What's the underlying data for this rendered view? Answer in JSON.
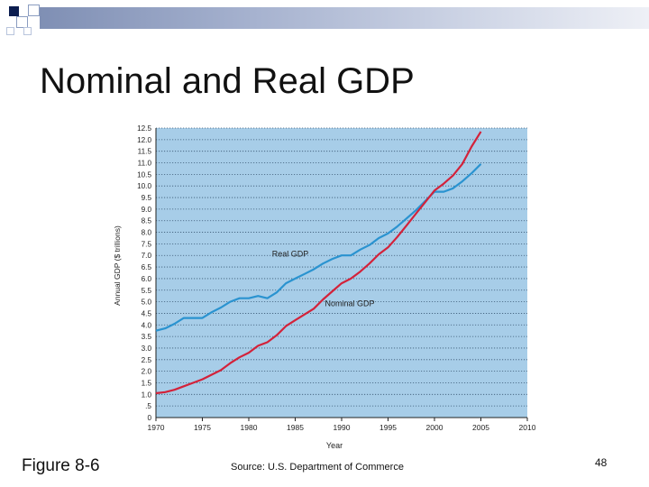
{
  "slide": {
    "title": "Nominal and Real GDP",
    "figure_label": "Figure 8-6",
    "source": "Source: U.S. Department of Commerce",
    "page_number": "48"
  },
  "colors": {
    "plot_background": "#a7cde8",
    "real_gdp": "#2a93d0",
    "nominal_gdp": "#d3223a",
    "decor_square": "#0b1d4f"
  },
  "chart_data": {
    "type": "line",
    "xlabel": "Year",
    "ylabel": "Annual GDP ($ trillions)",
    "xlim": [
      1970,
      2010
    ],
    "ylim": [
      0,
      12.5
    ],
    "x_ticks": [
      "1970",
      "1975",
      "1980",
      "1985",
      "1990",
      "1995",
      "2000",
      "2005",
      "2010"
    ],
    "y_ticks": [
      "0",
      ".5",
      "1.0",
      "1.5",
      "2.0",
      "2.5",
      "3.0",
      "3.5",
      "4.0",
      "4.5",
      "5.0",
      "5.5",
      "6.0",
      "6.5",
      "7.0",
      "7.5",
      "8.0",
      "8.5",
      "9.0",
      "9.5",
      "10.0",
      "10.5",
      "11.0",
      "11.5",
      "12.0",
      "12.5"
    ],
    "grid": true,
    "series": [
      {
        "name": "Real GDP",
        "x": [
          1970,
          1971,
          1972,
          1973,
          1974,
          1975,
          1976,
          1977,
          1978,
          1979,
          1980,
          1981,
          1982,
          1983,
          1984,
          1985,
          1986,
          1987,
          1988,
          1989,
          1990,
          1991,
          1992,
          1993,
          1994,
          1995,
          1996,
          1997,
          1998,
          1999,
          2000,
          2001,
          2002,
          2003,
          2004,
          2005
        ],
        "y": [
          3.75,
          3.85,
          4.05,
          4.3,
          4.3,
          4.3,
          4.55,
          4.75,
          5.0,
          5.15,
          5.15,
          5.25,
          5.15,
          5.4,
          5.8,
          6.0,
          6.2,
          6.4,
          6.65,
          6.85,
          7.0,
          7.0,
          7.25,
          7.45,
          7.75,
          7.95,
          8.25,
          8.6,
          8.95,
          9.35,
          9.75,
          9.75,
          9.9,
          10.2,
          10.55,
          10.95
        ]
      },
      {
        "name": "Nominal GDP",
        "x": [
          1970,
          1971,
          1972,
          1973,
          1974,
          1975,
          1976,
          1977,
          1978,
          1979,
          1980,
          1981,
          1982,
          1983,
          1984,
          1985,
          1986,
          1987,
          1988,
          1989,
          1990,
          1991,
          1992,
          1993,
          1994,
          1995,
          1996,
          1997,
          1998,
          1999,
          2000,
          2001,
          2002,
          2003,
          2004,
          2005
        ],
        "y": [
          1.05,
          1.1,
          1.2,
          1.35,
          1.5,
          1.65,
          1.85,
          2.05,
          2.35,
          2.6,
          2.8,
          3.1,
          3.25,
          3.55,
          3.95,
          4.2,
          4.45,
          4.7,
          5.1,
          5.45,
          5.8,
          6.0,
          6.3,
          6.65,
          7.05,
          7.35,
          7.8,
          8.3,
          8.8,
          9.3,
          9.8,
          10.1,
          10.45,
          10.95,
          11.7,
          12.35
        ]
      }
    ],
    "annotations": [
      {
        "text": "Real GDP",
        "x": 1982.5,
        "y": 6.95
      },
      {
        "text": "Nominal GDP",
        "x": 1988.2,
        "y": 4.8
      }
    ]
  }
}
